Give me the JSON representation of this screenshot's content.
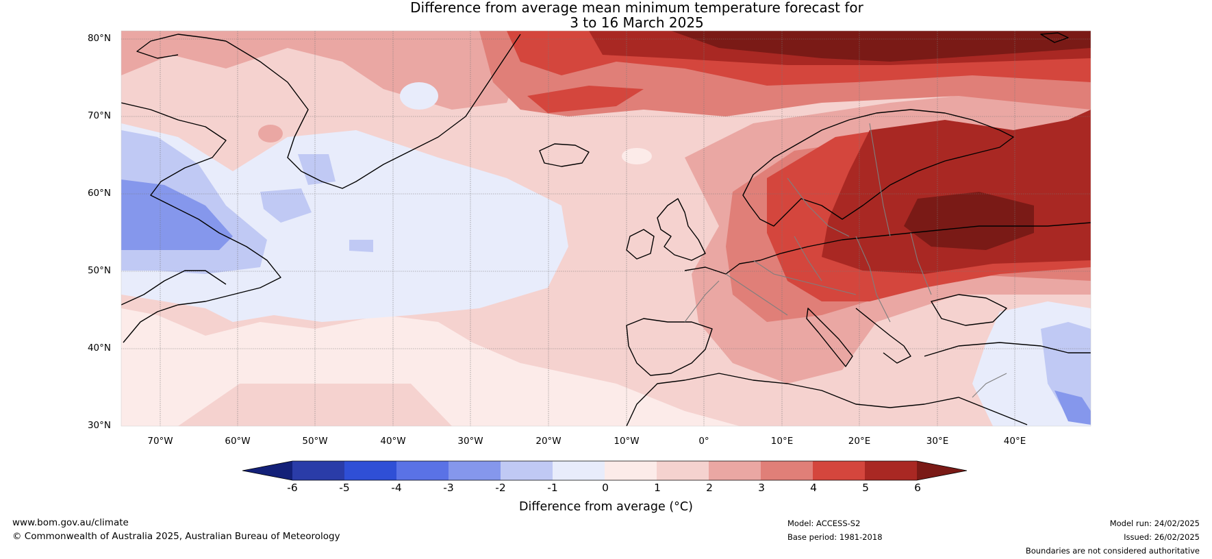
{
  "title": {
    "line1": "Difference from average mean minimum temperature forecast for",
    "line2": "3 to 16 March 2025"
  },
  "axes": {
    "lat_labels": [
      "80°N",
      "70°N",
      "60°N",
      "50°N",
      "40°N",
      "30°N"
    ],
    "lon_labels": [
      "70°W",
      "60°W",
      "50°W",
      "40°W",
      "30°W",
      "20°W",
      "10°W",
      "0°",
      "10°E",
      "20°E",
      "30°E",
      "40°E"
    ]
  },
  "colorbar": {
    "ticks": [
      "-6",
      "-5",
      "-4",
      "-3",
      "-2",
      "-1",
      "0",
      "1",
      "2",
      "3",
      "4",
      "5",
      "6"
    ],
    "label": "Difference from average (°C)",
    "colors": [
      "#132078",
      "#2a3ca8",
      "#2f4fd6",
      "#5a72e6",
      "#8597ec",
      "#c0c9f4",
      "#e8ecfb",
      "#fcebe9",
      "#f5d2cf",
      "#eaa7a3",
      "#e07f78",
      "#d4463d",
      "#a92823",
      "#7a1a16"
    ]
  },
  "footer": {
    "website": "www.bom.gov.au/climate",
    "copyright": "© Commonwealth of Australia 2025, Australian Bureau of Meteorology",
    "model": "Model: ACCESS-S2",
    "base_period": "Base period: 1981-2018",
    "model_run": "Model run: 24/02/2025",
    "issued": "Issued: 26/02/2025",
    "disclaimer": "Boundaries are not considered authoritative"
  }
}
